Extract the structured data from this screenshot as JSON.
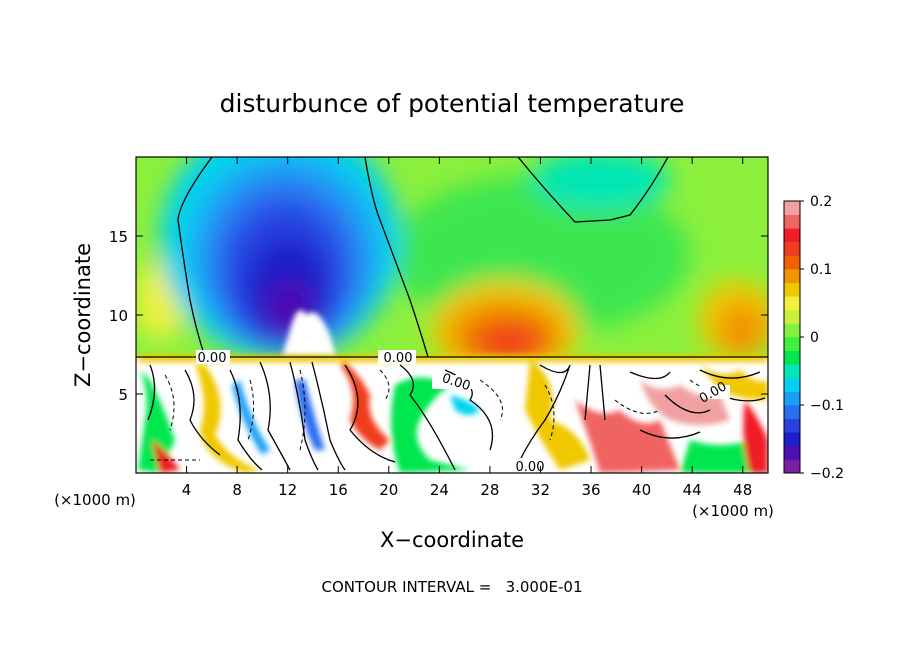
{
  "chart_data": {
    "type": "heatmap",
    "title": "disturbunce of potential temperature",
    "xlabel": "X−coordinate",
    "ylabel": "Z−coordinate",
    "x_unit": "(×1000 m)",
    "y_unit": "(×1000 m)",
    "xlim": [
      0,
      50
    ],
    "ylim": [
      0,
      20
    ],
    "x_ticks": [
      "4",
      "8",
      "12",
      "16",
      "20",
      "24",
      "28",
      "32",
      "36",
      "40",
      "44",
      "48"
    ],
    "y_ticks": [
      "5",
      "10",
      "15"
    ],
    "colorbar": {
      "min": -0.2,
      "max": 0.2,
      "tick_labels": [
        "0.2",
        "0.1",
        "0",
        "−0.1",
        "−0.2"
      ],
      "colors": [
        "#7b1fa2",
        "#4b0fb4",
        "#1e1ec8",
        "#2840e0",
        "#2a6ef0",
        "#1aa0f5",
        "#00d2f0",
        "#00e6b4",
        "#00e650",
        "#3cf03c",
        "#82f03c",
        "#c8f03c",
        "#f0f03c",
        "#f0c800",
        "#f09600",
        "#f06400",
        "#f03c1e",
        "#f01e28",
        "#f06464",
        "#f0a0a0"
      ]
    },
    "contour_labels": [
      "0.00",
      "0.00",
      "0.00",
      "0.00",
      "0.00"
    ],
    "footer": "CONTOUR INTERVAL =   3.000E-01"
  }
}
